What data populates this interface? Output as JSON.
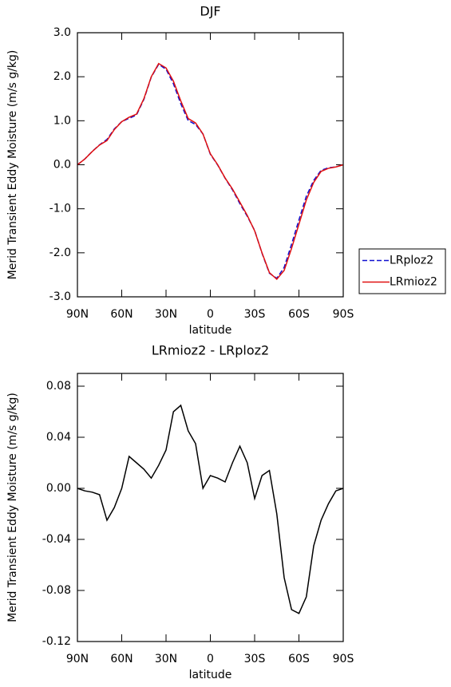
{
  "chart_data": [
    {
      "type": "line",
      "title": "DJF",
      "x_label": "latitude",
      "y_label": "Merid Transient Eddy Moisture (m/s g/kg)",
      "x": [
        90,
        85,
        80,
        75,
        70,
        65,
        60,
        55,
        50,
        45,
        40,
        35,
        30,
        25,
        20,
        15,
        10,
        5,
        0,
        -5,
        -10,
        -15,
        -20,
        -25,
        -30,
        -35,
        -40,
        -45,
        -50,
        -55,
        -60,
        -65,
        -70,
        -75,
        -80,
        -85,
        -90
      ],
      "series": [
        {
          "name": "LRploz2",
          "color": "#1010d0",
          "dash": true,
          "values": [
            0,
            0.132,
            0.303,
            0.455,
            0.575,
            0.815,
            0.98,
            1.055,
            1.13,
            1.485,
            1.992,
            2.282,
            2.17,
            1.84,
            1.385,
            1.005,
            0.915,
            0.7,
            0.24,
            -0.008,
            -0.305,
            -0.57,
            -0.883,
            -1.17,
            -1.492,
            -2.01,
            -2.464,
            -2.58,
            -2.33,
            -1.805,
            -1.252,
            -0.715,
            -0.355,
            -0.125,
            -0.068,
            -0.048,
            0
          ]
        },
        {
          "name": "LRmioz2",
          "color": "#e01010",
          "dash": false,
          "values": [
            0,
            0.13,
            0.3,
            0.45,
            0.55,
            0.8,
            0.98,
            1.08,
            1.15,
            1.5,
            2.0,
            2.3,
            2.2,
            1.9,
            1.45,
            1.05,
            0.95,
            0.7,
            0.25,
            0.0,
            -0.3,
            -0.55,
            -0.85,
            -1.15,
            -1.5,
            -2.0,
            -2.45,
            -2.6,
            -2.4,
            -1.9,
            -1.35,
            -0.8,
            -0.4,
            -0.15,
            -0.08,
            -0.05,
            0
          ]
        }
      ],
      "xlim": [
        90,
        -90
      ],
      "xticks": [
        {
          "value": 90,
          "label": "90N"
        },
        {
          "value": 60,
          "label": "60N"
        },
        {
          "value": 30,
          "label": "30N"
        },
        0,
        {
          "value": -30,
          "label": "30S"
        },
        {
          "value": -60,
          "label": "60S"
        },
        {
          "value": -90,
          "label": "90S"
        }
      ],
      "ylim": [
        -3,
        3
      ],
      "yticks": [
        {
          "value": 3,
          "label": "3.0"
        },
        {
          "value": 2,
          "label": "2.0"
        },
        {
          "value": 1,
          "label": "1.0"
        },
        {
          "value": 0,
          "label": "0.0"
        },
        {
          "value": -1,
          "label": "-1.0"
        },
        {
          "value": -2,
          "label": "-2.0"
        },
        {
          "value": -3,
          "label": "-3.0"
        }
      ],
      "legend": "right"
    },
    {
      "type": "line",
      "title": "LRmioz2 - LRploz2",
      "x_label": "latitude",
      "y_label": "Merid Transient Eddy Moisture (m/s g/kg)",
      "x": [
        90,
        85,
        80,
        75,
        70,
        65,
        60,
        55,
        50,
        45,
        40,
        35,
        30,
        25,
        20,
        15,
        10,
        5,
        0,
        -5,
        -10,
        -15,
        -20,
        -25,
        -30,
        -35,
        -40,
        -45,
        -50,
        -55,
        -60,
        -65,
        -70,
        -75,
        -80,
        -85,
        -90
      ],
      "series": [
        {
          "color": "#000000",
          "dash": false,
          "values": [
            0,
            -0.002,
            -0.003,
            -0.005,
            -0.025,
            -0.015,
            0,
            0.025,
            0.02,
            0.015,
            0.008,
            0.018,
            0.03,
            0.06,
            0.065,
            0.045,
            0.035,
            0,
            0.01,
            0.008,
            0.005,
            0.02,
            0.033,
            0.02,
            -0.008,
            0.01,
            0.014,
            -0.02,
            -0.07,
            -0.095,
            -0.098,
            -0.085,
            -0.045,
            -0.025,
            -0.012,
            -0.002,
            0
          ]
        }
      ],
      "xlim": [
        90,
        -90
      ],
      "xticks": [
        {
          "value": 90,
          "label": "90N"
        },
        {
          "value": 60,
          "label": "60N"
        },
        {
          "value": 30,
          "label": "30N"
        },
        0,
        {
          "value": -30,
          "label": "30S"
        },
        {
          "value": -60,
          "label": "60S"
        },
        {
          "value": -90,
          "label": "90S"
        }
      ],
      "ylim": [
        -0.12,
        0.09
      ],
      "yticks": [
        0.08,
        0.04,
        {
          "value": 0,
          "label": "0.00"
        },
        -0.04,
        -0.08,
        -0.12
      ]
    }
  ]
}
